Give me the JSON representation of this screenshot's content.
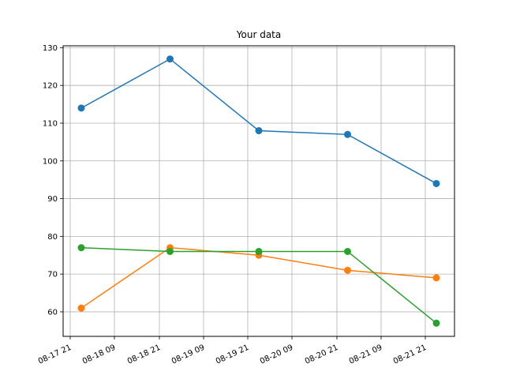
{
  "chart_data": {
    "type": "line",
    "title": "Your data",
    "xlabel": "",
    "ylabel": "",
    "x": [
      "2024-08-17 21:00",
      "2024-08-18 21:00",
      "2024-08-19 21:00",
      "2024-08-20 21:00",
      "2024-08-21 21:00"
    ],
    "x_tick_labels": [
      "08-17 21",
      "08-18 09",
      "08-18 21",
      "08-19 09",
      "08-19 21",
      "08-20 09",
      "08-20 21",
      "08-21 09",
      "08-21 21"
    ],
    "y_ticks": [
      60,
      70,
      80,
      90,
      100,
      110,
      120,
      130
    ],
    "ylim": [
      53.5,
      130.5
    ],
    "grid": true,
    "series": [
      {
        "color": "#1f77b4",
        "values": [
          114,
          127,
          108,
          107,
          94
        ]
      },
      {
        "color": "#ff7f0e",
        "values": [
          61,
          77,
          75,
          71,
          69
        ]
      },
      {
        "color": "#2ca02c",
        "values": [
          77,
          76,
          76,
          76,
          57
        ]
      }
    ]
  }
}
